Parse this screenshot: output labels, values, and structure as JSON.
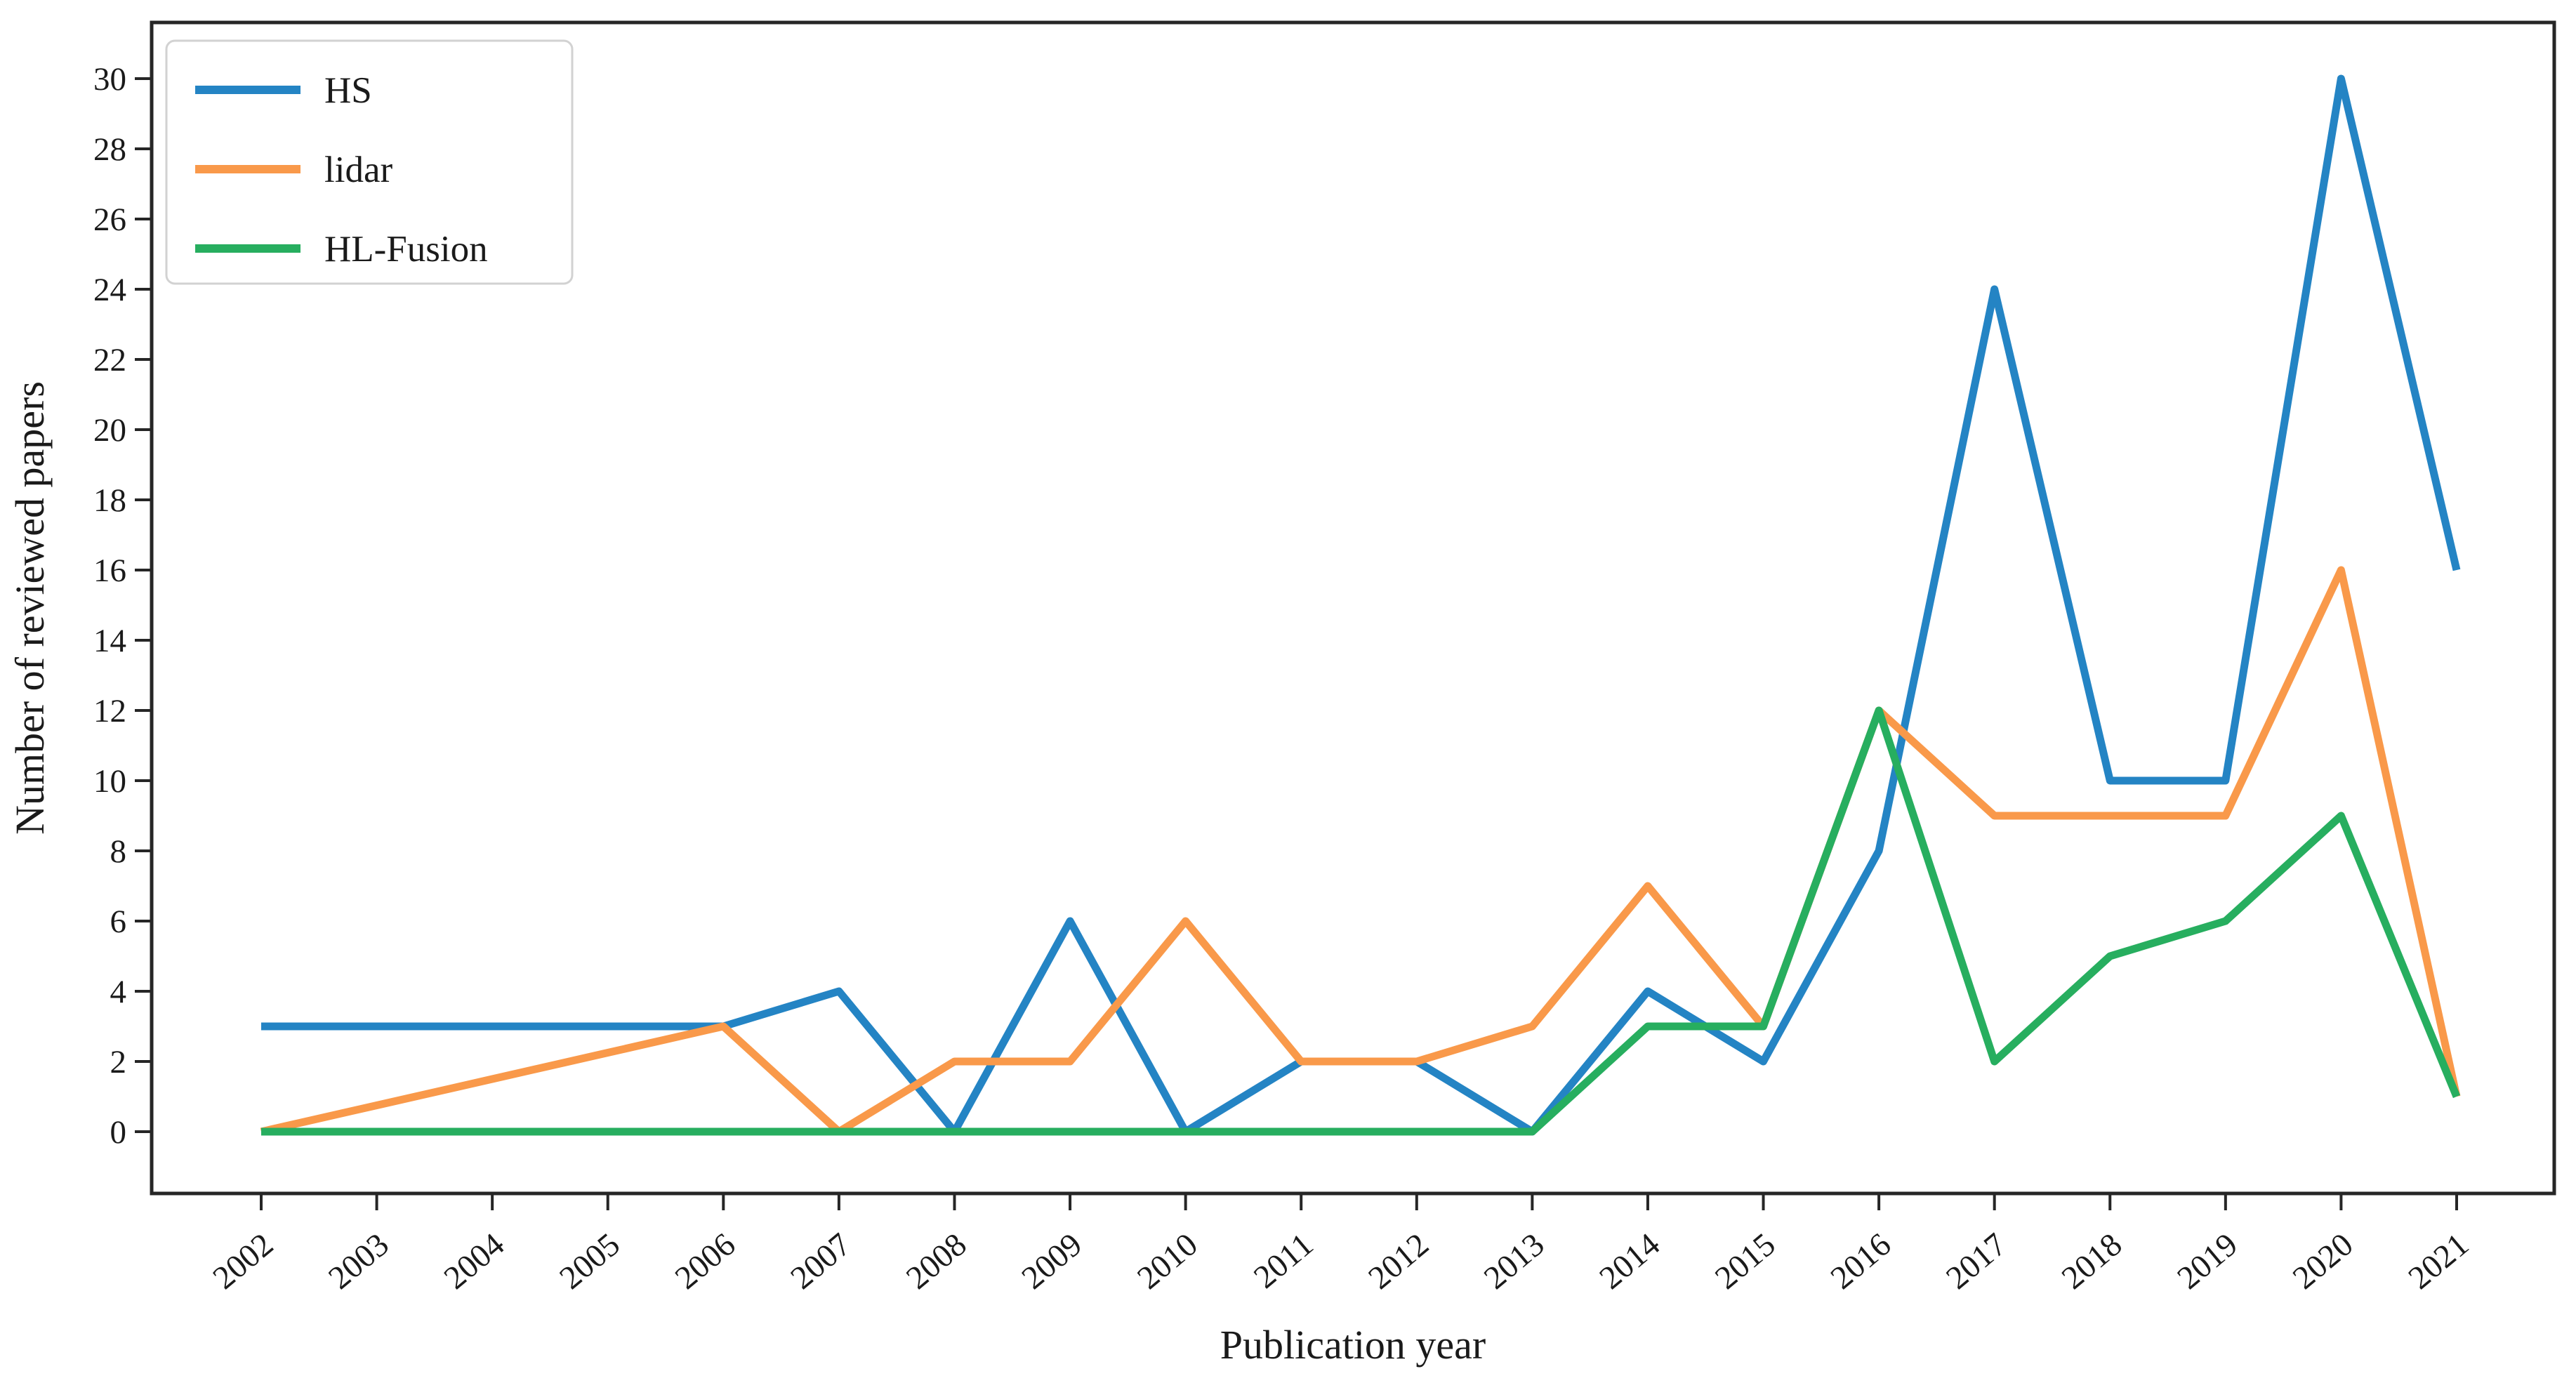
{
  "chart_data": {
    "type": "line",
    "title": "",
    "xlabel": "Publication year",
    "ylabel": "Number of reviewed papers",
    "x": [
      2002,
      2003,
      2004,
      2005,
      2006,
      2007,
      2008,
      2009,
      2010,
      2011,
      2012,
      2013,
      2014,
      2015,
      2016,
      2017,
      2018,
      2019,
      2020,
      2021
    ],
    "series": [
      {
        "name": "HS",
        "color": "#2484c4",
        "values": [
          3,
          3,
          3,
          3,
          3,
          4,
          0,
          6,
          0,
          2,
          2,
          0,
          4,
          2,
          8,
          24,
          10,
          10,
          30,
          16
        ]
      },
      {
        "name": "lidar",
        "color": "#f9994a",
        "values": [
          0,
          0.75,
          1.5,
          2.25,
          3,
          0,
          2,
          2,
          6,
          2,
          2,
          3,
          7,
          3,
          12,
          9,
          9,
          9,
          16,
          1
        ],
        "note": "2003-2005 lie on the straight drawn segment between 0 (2002) and 3 (2006)"
      },
      {
        "name": "HL-Fusion",
        "color": "#27ae5f",
        "values": [
          0,
          0,
          0,
          0,
          0,
          0,
          0,
          0,
          0,
          0,
          0,
          0,
          3,
          3,
          12,
          2,
          5,
          6,
          9,
          1
        ]
      }
    ],
    "ylim": [
      0,
      30
    ],
    "yticks": [
      0,
      2,
      4,
      6,
      8,
      10,
      12,
      14,
      16,
      18,
      20,
      22,
      24,
      26,
      28,
      30
    ],
    "xtick_rotation_deg": 40,
    "legend_position": "upper left",
    "grid": false,
    "background": "#ffffff",
    "spine_color": "#262626"
  }
}
